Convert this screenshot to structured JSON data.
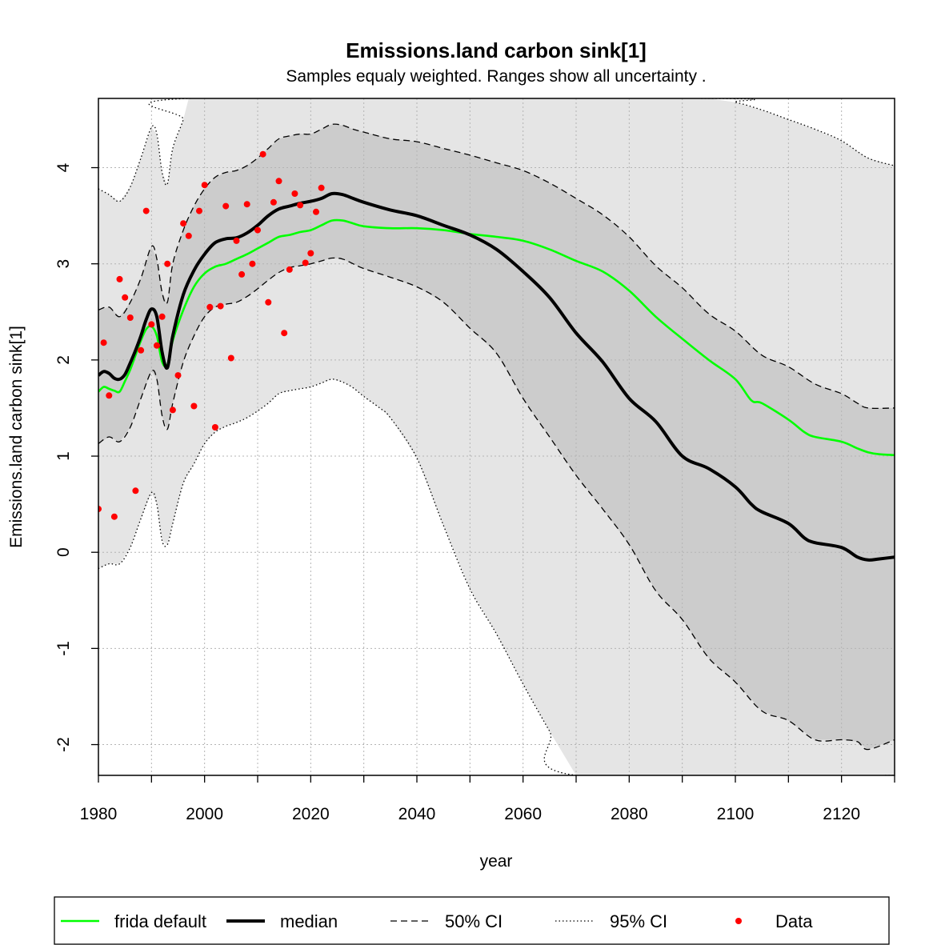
{
  "chart_data": {
    "type": "line",
    "title": "Emissions.land carbon sink[1]",
    "subtitle": "Samples equaly weighted. Ranges show  all uncertainty .",
    "xlabel": "year",
    "ylabel": "Emissions.land carbon sink[1]",
    "xlim": [
      1980,
      2130
    ],
    "ylim": [
      -2.32,
      4.72
    ],
    "x_ticks": [
      "1980",
      "2000",
      "2020",
      "2040",
      "2060",
      "2080",
      "2100",
      "2120"
    ],
    "y_ticks": [
      "-2",
      "-1",
      "0",
      "1",
      "2",
      "3",
      "4"
    ],
    "grid": true,
    "legend_position": "bottom",
    "legend": [
      {
        "label": "frida default",
        "style": "solid",
        "color": "#00ff00"
      },
      {
        "label": "median",
        "style": "thick",
        "color": "#000000"
      },
      {
        "label": "50% CI",
        "style": "dashed",
        "color": "#000000"
      },
      {
        "label": "95% CI",
        "style": "dotted",
        "color": "#000000"
      },
      {
        "label": "Data",
        "style": "point",
        "color": "#ff0000"
      }
    ],
    "colors": {
      "band95": "#e5e5e5",
      "band50": "#cccccc",
      "frida": "#00ff00",
      "median": "#000000",
      "data": "#ff0000"
    },
    "series": [
      {
        "name": "median",
        "x": [
          1980,
          1981,
          1982,
          1983,
          1984,
          1985,
          1986,
          1987,
          1988,
          1989,
          1990,
          1991,
          1992,
          1993,
          1994,
          1996,
          1998,
          2000,
          2002,
          2004,
          2006,
          2008,
          2010,
          2012,
          2014,
          2016,
          2018,
          2020,
          2022,
          2024,
          2026,
          2028,
          2030,
          2035,
          2040,
          2045,
          2050,
          2055,
          2060,
          2065,
          2070,
          2075,
          2080,
          2085,
          2090,
          2095,
          2100,
          2103,
          2105,
          2110,
          2113,
          2115,
          2120,
          2123,
          2125,
          2127,
          2130
        ],
        "y": [
          1.84,
          1.88,
          1.86,
          1.81,
          1.8,
          1.85,
          1.97,
          2.1,
          2.25,
          2.42,
          2.53,
          2.45,
          2.08,
          1.92,
          2.25,
          2.68,
          2.93,
          3.1,
          3.22,
          3.26,
          3.27,
          3.32,
          3.4,
          3.5,
          3.57,
          3.6,
          3.63,
          3.65,
          3.68,
          3.73,
          3.72,
          3.68,
          3.64,
          3.56,
          3.5,
          3.4,
          3.3,
          3.15,
          2.92,
          2.65,
          2.28,
          1.98,
          1.6,
          1.36,
          1.0,
          0.87,
          0.68,
          0.5,
          0.42,
          0.3,
          0.15,
          0.1,
          0.05,
          -0.05,
          -0.08,
          -0.07,
          -0.05
        ]
      },
      {
        "name": "frida default",
        "x": [
          1980,
          1981,
          1982,
          1983,
          1984,
          1985,
          1986,
          1987,
          1988,
          1989,
          1990,
          1991,
          1992,
          1993,
          1994,
          1996,
          1998,
          2000,
          2002,
          2004,
          2006,
          2008,
          2010,
          2012,
          2014,
          2016,
          2018,
          2020,
          2022,
          2024,
          2026,
          2028,
          2030,
          2035,
          2040,
          2045,
          2050,
          2055,
          2060,
          2065,
          2070,
          2075,
          2080,
          2085,
          2090,
          2095,
          2100,
          2103,
          2105,
          2110,
          2113,
          2115,
          2120,
          2123,
          2125,
          2127,
          2130
        ],
        "y": [
          1.67,
          1.72,
          1.7,
          1.68,
          1.67,
          1.78,
          1.9,
          2.05,
          2.2,
          2.32,
          2.35,
          2.25,
          1.98,
          1.95,
          2.2,
          2.52,
          2.76,
          2.9,
          2.97,
          3.0,
          3.05,
          3.1,
          3.16,
          3.22,
          3.28,
          3.3,
          3.33,
          3.35,
          3.4,
          3.45,
          3.45,
          3.42,
          3.39,
          3.37,
          3.37,
          3.35,
          3.31,
          3.28,
          3.24,
          3.15,
          3.03,
          2.92,
          2.72,
          2.45,
          2.22,
          2.0,
          1.8,
          1.58,
          1.55,
          1.38,
          1.25,
          1.2,
          1.15,
          1.08,
          1.04,
          1.02,
          1.01
        ]
      },
      {
        "name": "50% CI upper",
        "x": [
          1980,
          1982,
          1984,
          1986,
          1988,
          1990,
          1991,
          1992,
          1993,
          1994,
          1996,
          1998,
          2000,
          2002,
          2004,
          2006,
          2008,
          2010,
          2012,
          2014,
          2016,
          2018,
          2020,
          2022,
          2024,
          2026,
          2028,
          2030,
          2035,
          2040,
          2045,
          2050,
          2055,
          2060,
          2065,
          2070,
          2075,
          2080,
          2085,
          2090,
          2095,
          2100,
          2105,
          2110,
          2115,
          2120,
          2123,
          2125,
          2130
        ],
        "y": [
          2.52,
          2.55,
          2.45,
          2.6,
          2.85,
          3.18,
          3.05,
          2.7,
          2.6,
          3.0,
          3.35,
          3.6,
          3.78,
          3.9,
          3.95,
          3.97,
          4.02,
          4.1,
          4.2,
          4.3,
          4.33,
          4.35,
          4.35,
          4.4,
          4.45,
          4.44,
          4.4,
          4.37,
          4.3,
          4.27,
          4.2,
          4.13,
          4.05,
          3.97,
          3.84,
          3.68,
          3.51,
          3.28,
          2.98,
          2.75,
          2.48,
          2.3,
          2.05,
          1.93,
          1.75,
          1.65,
          1.55,
          1.5,
          1.5
        ]
      },
      {
        "name": "50% CI lower",
        "x": [
          1980,
          1982,
          1984,
          1986,
          1988,
          1990,
          1991,
          1992,
          1993,
          1994,
          1996,
          1998,
          2000,
          2002,
          2004,
          2006,
          2008,
          2010,
          2012,
          2014,
          2016,
          2018,
          2020,
          2022,
          2024,
          2026,
          2028,
          2030,
          2035,
          2040,
          2045,
          2050,
          2055,
          2060,
          2065,
          2070,
          2075,
          2080,
          2085,
          2090,
          2095,
          2100,
          2105,
          2110,
          2115,
          2120,
          2123,
          2125,
          2130
        ],
        "y": [
          1.13,
          1.2,
          1.15,
          1.3,
          1.6,
          1.88,
          1.8,
          1.42,
          1.28,
          1.55,
          1.98,
          2.25,
          2.45,
          2.55,
          2.58,
          2.6,
          2.66,
          2.74,
          2.83,
          2.91,
          2.96,
          2.98,
          3.0,
          3.03,
          3.06,
          3.05,
          3.0,
          2.95,
          2.86,
          2.76,
          2.6,
          2.33,
          2.07,
          1.6,
          1.2,
          0.8,
          0.45,
          0.08,
          -0.4,
          -0.7,
          -1.1,
          -1.35,
          -1.65,
          -1.75,
          -1.95,
          -1.95,
          -1.97,
          -2.05,
          -1.95
        ]
      },
      {
        "name": "95% CI upper",
        "x": [
          1980,
          1982,
          1984,
          1986,
          1988,
          1990,
          1991,
          1992,
          1993,
          1994,
          1996,
          1997,
          2095,
          2100,
          2105,
          2110,
          2115,
          2120,
          2125,
          2130
        ],
        "y": [
          3.78,
          3.72,
          3.65,
          3.8,
          4.1,
          4.42,
          4.35,
          3.95,
          3.83,
          4.2,
          4.5,
          4.72,
          4.72,
          4.68,
          4.6,
          4.5,
          4.4,
          4.28,
          4.1,
          4.02
        ]
      },
      {
        "name": "95% CI lower",
        "x": [
          1980,
          1982,
          1984,
          1986,
          1988,
          1990,
          1991,
          1992,
          1993,
          1994,
          1996,
          1998,
          2000,
          2002,
          2004,
          2006,
          2008,
          2010,
          2012,
          2014,
          2016,
          2018,
          2020,
          2022,
          2024,
          2026,
          2028,
          2030,
          2033,
          2035,
          2040,
          2045,
          2050,
          2055,
          2060,
          2065,
          2070,
          2130
        ],
        "y": [
          -0.17,
          -0.12,
          -0.12,
          0.05,
          0.35,
          0.62,
          0.5,
          0.12,
          0.08,
          0.3,
          0.72,
          0.92,
          1.13,
          1.25,
          1.31,
          1.35,
          1.4,
          1.47,
          1.55,
          1.65,
          1.68,
          1.7,
          1.72,
          1.76,
          1.8,
          1.77,
          1.71,
          1.62,
          1.5,
          1.4,
          0.98,
          0.28,
          -0.38,
          -0.85,
          -1.37,
          -1.86,
          -2.32,
          -2.32
        ]
      }
    ],
    "data_points": {
      "x": [
        1980,
        1981,
        1982,
        1983,
        1984,
        1985,
        1986,
        1987,
        1988,
        1989,
        1990,
        1991,
        1992,
        1993,
        1994,
        1995,
        1996,
        1997,
        1998,
        1999,
        2000,
        2001,
        2002,
        2003,
        2004,
        2005,
        2006,
        2007,
        2008,
        2009,
        2010,
        2011,
        2012,
        2013,
        2014,
        2015,
        2016,
        2017,
        2018,
        2019,
        2020,
        2021,
        2022
      ],
      "y": [
        0.45,
        2.18,
        1.63,
        0.37,
        2.84,
        2.65,
        2.44,
        0.64,
        2.1,
        3.55,
        2.37,
        2.15,
        2.45,
        3.0,
        1.48,
        1.84,
        3.42,
        3.29,
        1.52,
        3.55,
        3.82,
        2.55,
        1.3,
        2.56,
        3.6,
        2.02,
        3.24,
        2.89,
        3.62,
        3.0,
        3.35,
        4.14,
        2.6,
        3.64,
        3.86,
        2.28,
        2.94,
        3.73,
        3.61,
        3.01,
        3.11,
        3.54,
        3.79
      ]
    }
  }
}
